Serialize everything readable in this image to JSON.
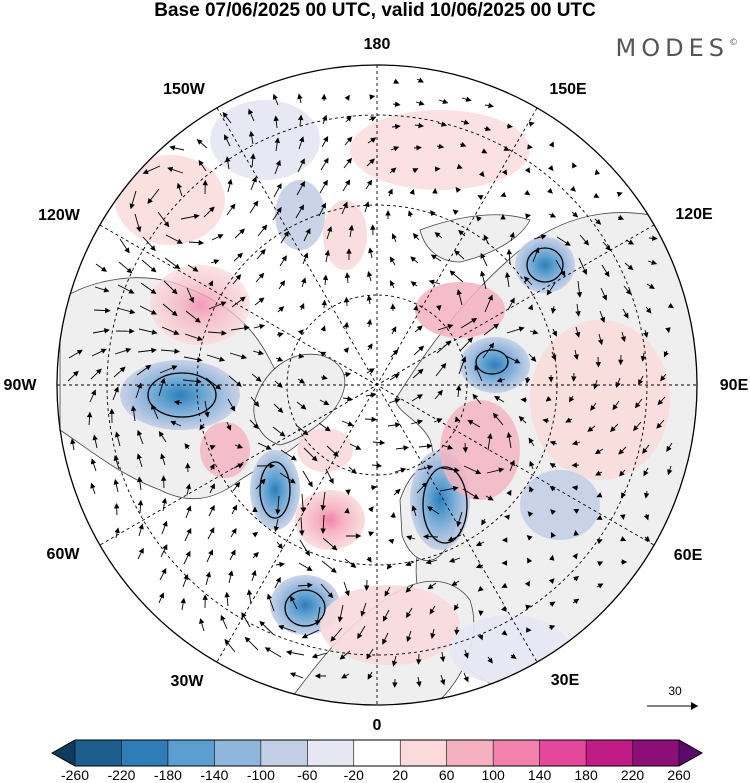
{
  "title": "Base 07/06/2025 00 UTC, valid 10/06/2025 00 UTC",
  "brand": "MODES",
  "brand_mark": "©",
  "longitude_labels": {
    "lon_180": "180",
    "lon_150e": "150E",
    "lon_120e": "120E",
    "lon_90e": "90E",
    "lon_60e": "60E",
    "lon_30e": "30E",
    "lon_0": "0",
    "lon_30w": "30W",
    "lon_60w": "60W",
    "lon_90w": "90W",
    "lon_120w": "120W",
    "lon_150w": "150W"
  },
  "reference_vector": {
    "label": "30"
  },
  "colorbar": {
    "ticks": [
      "-260",
      "-220",
      "-180",
      "-140",
      "-100",
      "-60",
      "-20",
      "20",
      "60",
      "100",
      "140",
      "180",
      "220",
      "260"
    ],
    "colors": [
      "#0f3b5c",
      "#1d5e8e",
      "#2f7db8",
      "#5a9fcf",
      "#8fb6dc",
      "#c3cfe6",
      "#e6e7f2",
      "#ffffff",
      "#fadadb",
      "#f5b1bf",
      "#f282ad",
      "#e3489a",
      "#c01c85",
      "#8c0f78",
      "#5a0a6a"
    ]
  },
  "colors": {
    "land": "#efefef",
    "ocean": "#ffffff",
    "grid": "#000000"
  }
}
